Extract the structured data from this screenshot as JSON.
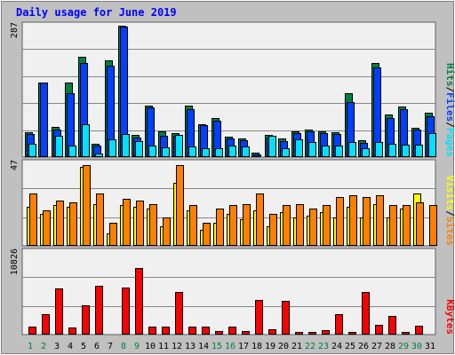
{
  "colors": {
    "background": "#c0c0c0",
    "panel": "#f0f0f0",
    "grid": "#888888",
    "title": "#0000ff",
    "hits": "#008040",
    "files": "#0040ff",
    "pages": "#00e0ff",
    "visits": "#ffff00",
    "sites": "#ff8000",
    "kbytes": "#ff0000",
    "weekend_day": "#008040",
    "weekday": "#000000"
  },
  "chart_data": {
    "type": "bar",
    "title": "Daily usage for June 2019",
    "x": [
      "1",
      "2",
      "3",
      "4",
      "5",
      "6",
      "7",
      "8",
      "9",
      "10",
      "11",
      "12",
      "13",
      "14",
      "15",
      "16",
      "17",
      "18",
      "19",
      "20",
      "21",
      "22",
      "23",
      "24",
      "25",
      "26",
      "27",
      "28",
      "29",
      "30",
      "31"
    ],
    "weekend_days": [
      "1",
      "2",
      "8",
      "9",
      "15",
      "16",
      "22",
      "23",
      "29",
      "30"
    ],
    "panels": [
      {
        "id": "hits-files-pages",
        "max_label": "287",
        "ylim": [
          0,
          287
        ],
        "legend": [
          {
            "text": "Pages",
            "color": "#00e0ff"
          },
          {
            "text": "Files",
            "color": "#0040ff"
          },
          {
            "text": "Hits",
            "color": "#008040"
          }
        ],
        "series": [
          {
            "name": "Hits",
            "color": "#008040",
            "values": [
              55,
              163,
              65,
              162,
              220,
              30,
              212,
              287,
              48,
              113,
              56,
              52,
              113,
              72,
              86,
              45,
              41,
              10,
              48,
              40,
              56,
              60,
              56,
              55,
              140,
              36,
              205,
              94,
              110,
              64,
              96
            ]
          },
          {
            "name": "Files",
            "color": "#0040ff",
            "values": [
              50,
              163,
              60,
              140,
              205,
              25,
              200,
              285,
              42,
              108,
              46,
              46,
              105,
              70,
              80,
              40,
              36,
              6,
              42,
              35,
              52,
              57,
              52,
              50,
              120,
              31,
              196,
              86,
              105,
              60,
              90
            ]
          },
          {
            "name": "Pages",
            "color": "#00e0ff",
            "values": [
              29,
              0,
              47,
              26,
              72,
              7,
              38,
              50,
              34,
              25,
              22,
              48,
              24,
              19,
              20,
              25,
              24,
              0,
              46,
              20,
              38,
              33,
              25,
              26,
              32,
              19,
              32,
              30,
              28,
              27,
              53
            ]
          }
        ]
      },
      {
        "id": "visits-sites",
        "max_label": "47",
        "ylim": [
          0,
          47
        ],
        "legend": [
          {
            "text": "Sites",
            "color": "#ff8000"
          },
          {
            "text": "Visits",
            "color": "#ffff00"
          }
        ],
        "series": [
          {
            "name": "Visits",
            "color": "#ffff00",
            "values": [
              22,
              18,
              23,
              22,
              45,
              24,
              7,
              23,
              22,
              21,
              11,
              36,
              20,
              9,
              13,
              18,
              15,
              20,
              11,
              19,
              16,
              17,
              19,
              16,
              22,
              16,
              24,
              16,
              21,
              30,
              0
            ]
          },
          {
            "name": "Sites",
            "color": "#ff8000",
            "values": [
              30,
              20,
              26,
              25,
              46,
              30,
              13,
              27,
              26,
              24,
              16,
              46,
              23,
              13,
              21,
              23,
              24,
              30,
              18,
              23,
              24,
              21,
              23,
              28,
              29,
              28,
              29,
              23,
              23,
              25,
              23
            ]
          }
        ]
      },
      {
        "id": "kbytes",
        "max_label": "10826",
        "ylim": [
          0,
          10826
        ],
        "legend": [
          {
            "text": "KBytes",
            "color": "#ff0000"
          }
        ],
        "series": [
          {
            "name": "KBytes",
            "color": "#ff0000",
            "values": [
              1100,
              2700,
              6000,
              900,
              3800,
              6400,
              0,
              6200,
              8700,
              1000,
              1000,
              5600,
              1100,
              1000,
              500,
              1100,
              500,
              4500,
              700,
              4400,
              400,
              400,
              600,
              2700,
              400,
              5600,
              1300,
              2500,
              300,
              1200,
              0
            ]
          }
        ]
      }
    ]
  }
}
